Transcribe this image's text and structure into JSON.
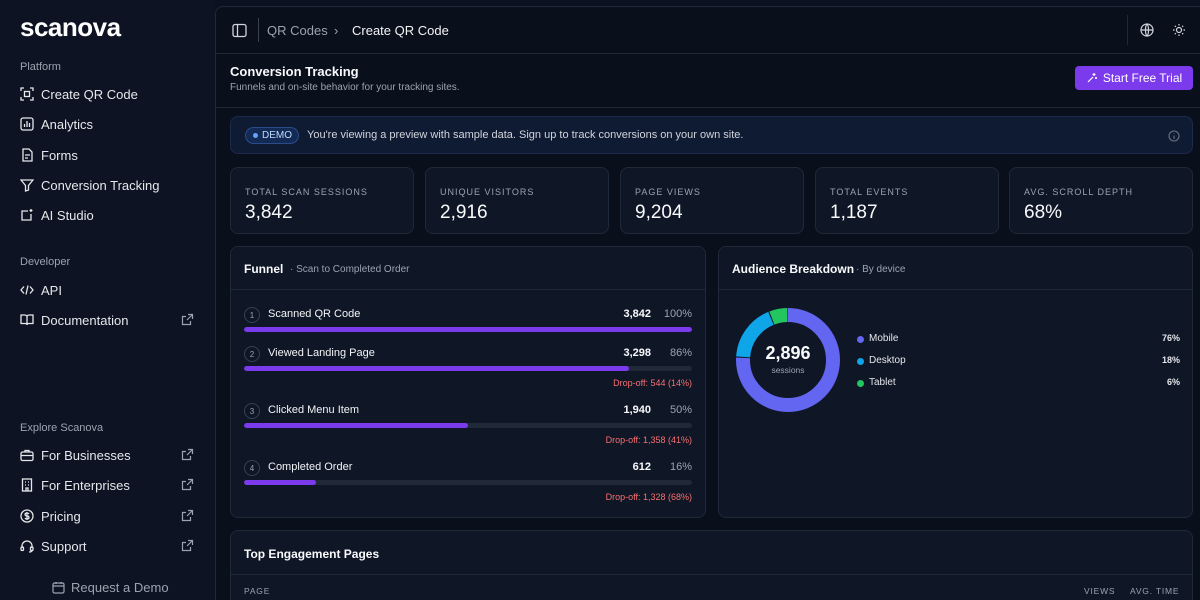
{
  "brand": {
    "logo_text": "scanova"
  },
  "sidebar": {
    "platform_label": "Platform",
    "platform_items": [
      {
        "label": "Create QR Code",
        "icon": "qr-scan-icon"
      },
      {
        "label": "Analytics",
        "icon": "bar-chart-icon"
      },
      {
        "label": "Forms",
        "icon": "form-icon"
      },
      {
        "label": "Conversion Tracking",
        "icon": "funnel-icon"
      },
      {
        "label": "AI Studio",
        "icon": "ai-sparkle-icon"
      }
    ],
    "developer_label": "Developer",
    "developer_items": [
      {
        "label": "API",
        "icon": "code-icon"
      },
      {
        "label": "Documentation",
        "icon": "book-icon"
      }
    ],
    "explore_label": "Explore Scanova",
    "explore_items": [
      {
        "label": "For Businesses",
        "icon": "briefcase-icon"
      },
      {
        "label": "For Enterprises",
        "icon": "building-icon"
      },
      {
        "label": "Pricing",
        "icon": "dollar-icon"
      },
      {
        "label": "Support",
        "icon": "headset-icon"
      }
    ],
    "request_demo": "Request a Demo"
  },
  "topbar": {
    "breadcrumb_parent": "QR Codes",
    "breadcrumb_separator": "›",
    "breadcrumb_current": "Create QR Code"
  },
  "header": {
    "title": "Conversion Tracking",
    "subtitle": "Funnels and on-site behavior for your tracking sites.",
    "trial_button": "Start Free Trial"
  },
  "demo_banner": {
    "pill": "DEMO",
    "text": "You're viewing a preview with sample data. Sign up to track conversions on your own site."
  },
  "stats": [
    {
      "label": "TOTAL SCAN SESSIONS",
      "value": "3,842"
    },
    {
      "label": "UNIQUE VISITORS",
      "value": "2,916"
    },
    {
      "label": "PAGE VIEWS",
      "value": "9,204"
    },
    {
      "label": "TOTAL EVENTS",
      "value": "1,187"
    },
    {
      "label": "AVG. SCROLL DEPTH",
      "value": "68%"
    }
  ],
  "funnel": {
    "title": "Funnel",
    "subtitle": "· Scan to Completed Order",
    "steps": [
      {
        "num": "1",
        "name": "Scanned QR Code",
        "count": "3,842",
        "pct": "100%",
        "fraction": 1.0,
        "drop": ""
      },
      {
        "num": "2",
        "name": "Viewed Landing Page",
        "count": "3,298",
        "pct": "86%",
        "fraction": 0.86,
        "drop": "Drop-off: 544 (14%)"
      },
      {
        "num": "3",
        "name": "Clicked Menu Item",
        "count": "1,940",
        "pct": "50%",
        "fraction": 0.5,
        "drop": "Drop-off: 1,358 (41%)"
      },
      {
        "num": "4",
        "name": "Completed Order",
        "count": "612",
        "pct": "16%",
        "fraction": 0.16,
        "drop": "Drop-off: 1,328 (68%)"
      }
    ]
  },
  "audience": {
    "title": "Audience Breakdown",
    "subtitle": "· By device",
    "total": "2,896",
    "total_label": "sessions",
    "segments": [
      {
        "name": "Mobile",
        "pct": "76%",
        "value": 76,
        "color": "#6366f1"
      },
      {
        "name": "Desktop",
        "pct": "18%",
        "value": 18,
        "color": "#0ea5e9"
      },
      {
        "name": "Tablet",
        "pct": "6%",
        "value": 6,
        "color": "#22c55e"
      }
    ]
  },
  "engagement": {
    "title": "Top Engagement Pages",
    "col_page": "PAGE",
    "col_views": "VIEWS",
    "col_time": "AVG. TIME"
  },
  "colors": {
    "accent": "#7c3aed",
    "background": "#0b1120",
    "card": "#0f1626",
    "danger": "#f87171"
  }
}
